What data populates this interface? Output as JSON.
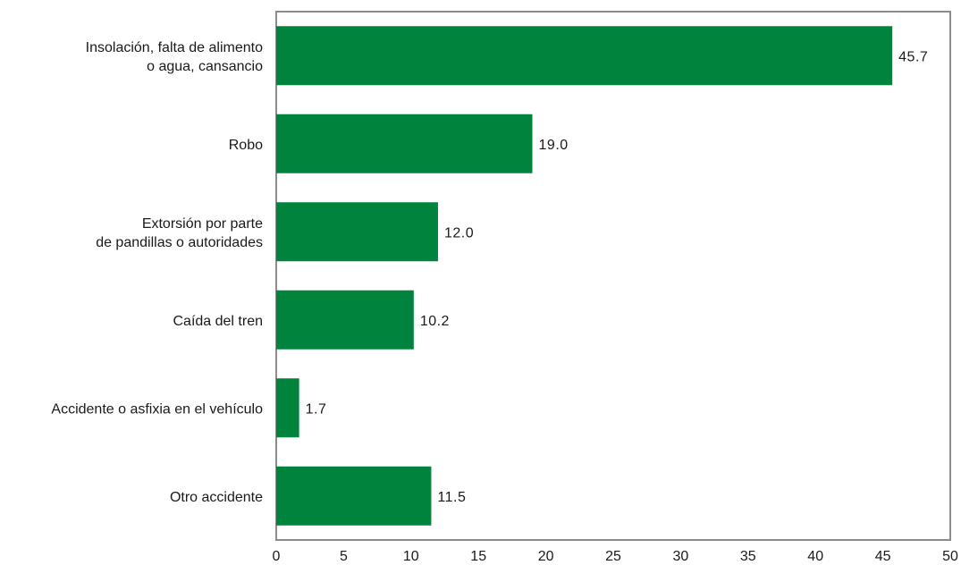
{
  "chart_data": {
    "type": "bar",
    "orientation": "horizontal",
    "categories": [
      [
        "Insolación, falta de alimento",
        "o agua, cansancio"
      ],
      [
        "Robo"
      ],
      [
        "Extorsión por parte",
        "de pandillas o autoridades"
      ],
      [
        "Caída del tren"
      ],
      [
        "Accidente o asfixia en el vehículo"
      ],
      [
        "Otro accidente"
      ]
    ],
    "values": [
      45.7,
      19.0,
      12.0,
      10.2,
      1.7,
      11.5
    ],
    "value_labels": [
      "45.7",
      "19.0",
      "12.0",
      "10.2",
      "1.7",
      "11.5"
    ],
    "x_ticks": [
      "0",
      "5",
      "10",
      "15",
      "20",
      "25",
      "30",
      "35",
      "40",
      "45",
      "50"
    ],
    "xlim": [
      0,
      50
    ],
    "title": "",
    "xlabel": "",
    "ylabel": "",
    "grid": false,
    "legend": "none",
    "colors": {
      "bar": "#00843d",
      "frame": "#8c8c8c",
      "text": "#1a1a1a"
    }
  }
}
